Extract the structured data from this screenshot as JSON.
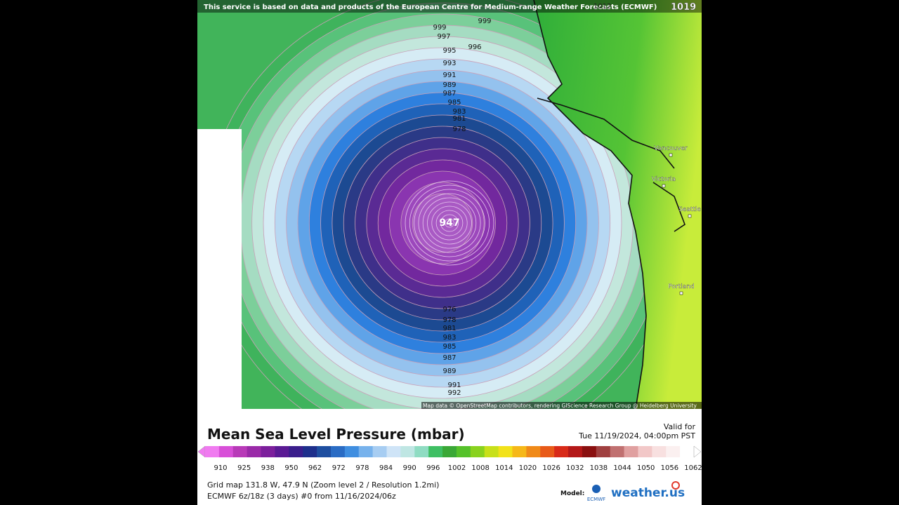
{
  "attribution": "This service is based on data and products of the European Centre for Medium-range Weather Forecasts (ECMWF)",
  "corner_labels": [
    1012,
    1019
  ],
  "contour_labels": [
    999,
    997,
    995,
    993,
    991,
    989,
    987,
    985,
    983,
    981,
    978,
    947,
    976,
    978,
    981,
    983,
    985,
    987,
    989,
    991,
    992,
    996,
    999
  ],
  "cities": [
    "Vancouver",
    "Victoria",
    "Seattle",
    "Portland"
  ],
  "map_credit": "Map data © OpenStreetMap contributors, rendering GIScience Research Group @ Heidelberg University",
  "legend": {
    "title": "Mean Sea Level Pressure (mbar)",
    "valid_label": "Valid for",
    "valid_time": "Tue 11/19/2024, 04:00pm PST",
    "scale_ticks": [
      910,
      925,
      938,
      950,
      962,
      972,
      978,
      984,
      990,
      996,
      1002,
      1008,
      1014,
      1020,
      1026,
      1032,
      1038,
      1044,
      1050,
      1056,
      1062
    ],
    "grid_info": "Grid map 131.8 W, 47.9 N (Zoom level 2 / Resolution 1.2mi)",
    "run_info": "ECMWF 6z/18z (3 days) #0 from 11/16/2024/06z",
    "model_label": "Model:",
    "model": "ECMWF",
    "brand": "weather.us"
  }
}
